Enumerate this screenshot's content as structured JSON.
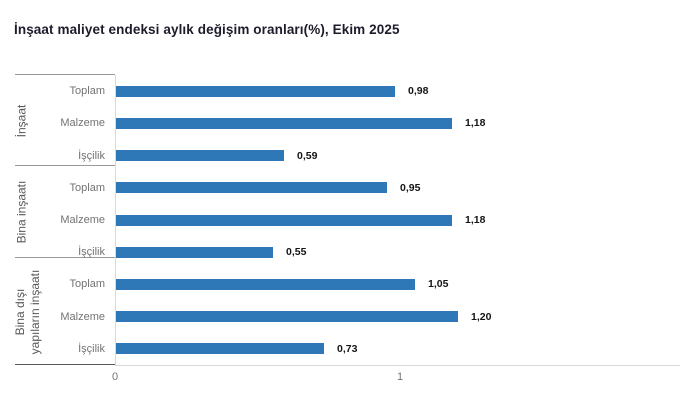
{
  "header": {
    "title": "İnşaat maliyet endeksi aylık değişim oranları(%), Ekim 2025"
  },
  "colors": {
    "bar": "#2e78b8",
    "title_text": "#1c1c2b",
    "category_label": "#737373",
    "group_label": "#595959",
    "value_label": "#141414",
    "box_line": "#999999",
    "box_line_bottom": "#595959",
    "axis_line": "#d9d9d9"
  },
  "chart_data": {
    "type": "bar",
    "orientation": "horizontal",
    "title": "İnşaat maliyet endeksi aylık değişim oranları(%), Ekim 2025",
    "xlabel": "",
    "ylabel": "",
    "xlim": [
      0,
      1.98
    ],
    "grid": false,
    "legend": false,
    "value_labels_visible": true,
    "xticks": [
      {
        "value": 0,
        "label": "0"
      },
      {
        "value": 1,
        "label": "1"
      }
    ],
    "groups": [
      {
        "label": "İnşaat",
        "label_lines": [
          "İnşaat"
        ],
        "items": [
          {
            "label": "Toplam",
            "value": 0.98,
            "display": "0,98"
          },
          {
            "label": "Malzeme",
            "value": 1.18,
            "display": "1,18"
          },
          {
            "label": "İşçilik",
            "value": 0.59,
            "display": "0,59"
          }
        ]
      },
      {
        "label": "Bina inşaatı",
        "label_lines": [
          "Bina inşaatı"
        ],
        "items": [
          {
            "label": "Toplam",
            "value": 0.95,
            "display": "0,95"
          },
          {
            "label": "Malzeme",
            "value": 1.18,
            "display": "1,18"
          },
          {
            "label": "İşçilik",
            "value": 0.55,
            "display": "0,55"
          }
        ]
      },
      {
        "label": "Bina dışı yapıların inşaatı",
        "label_lines": [
          "Bina dışı",
          "yapıların inşaatı"
        ],
        "items": [
          {
            "label": "Toplam",
            "value": 1.05,
            "display": "1,05"
          },
          {
            "label": "Malzeme",
            "value": 1.2,
            "display": "1,20"
          },
          {
            "label": "İşçilik",
            "value": 0.73,
            "display": "0,73"
          }
        ]
      }
    ]
  }
}
